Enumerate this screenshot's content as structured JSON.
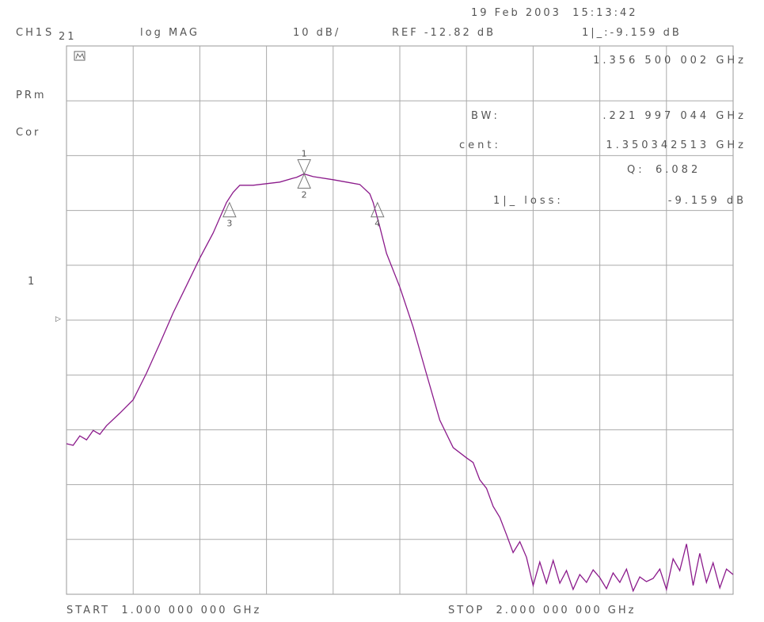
{
  "header": {
    "timestamp": "19 Feb 2003  15:13:42",
    "channel": "CH1",
    "param_s": "S",
    "param_21": "21",
    "format": "log MAG",
    "scale": "10 dB/",
    "ref": "REF -12.82 dB",
    "marker1_readout": "1|_:-9.159 dB"
  },
  "side_labels": {
    "prm": "PRm",
    "cor": "Cor",
    "ref_arrow": "1",
    "ref_tri": "▷"
  },
  "marker_box_icon": "marker-box-icon",
  "marker_readouts": {
    "freq": "1.356 500 002 GHz",
    "bw_label": "BW:",
    "bw_value": ".221 997 044 GHz",
    "cent_label": "cent:",
    "cent_value": "1.350342513 GHz",
    "q_label": "Q:",
    "q_value": "6.082",
    "loss_label": "1|_ loss:",
    "loss_value": "-9.159 dB"
  },
  "footer": {
    "start": "START  1.000 000 000 GHz",
    "stop": "STOP  2.000 000 000 GHz"
  },
  "chart_data": {
    "type": "line",
    "x_unit": "GHz",
    "xlim": [
      1.0,
      2.0
    ],
    "ylim": [
      -62.82,
      7.18
    ],
    "ref_level": -12.82,
    "scale_per_div": 10,
    "grid": true,
    "trace_color": "#8b1a8b",
    "series": [
      {
        "x": [
          1.0,
          1.01,
          1.02,
          1.03,
          1.04,
          1.05,
          1.06,
          1.08,
          1.1,
          1.12,
          1.14,
          1.16,
          1.18,
          1.2,
          1.22,
          1.24,
          1.25,
          1.26,
          1.28,
          1.3,
          1.32,
          1.34,
          1.345,
          1.356,
          1.37,
          1.4,
          1.42,
          1.44,
          1.455,
          1.46,
          1.47,
          1.48,
          1.5,
          1.52,
          1.54,
          1.56,
          1.58,
          1.6,
          1.61,
          1.62,
          1.63,
          1.64,
          1.65,
          1.66,
          1.67,
          1.68,
          1.69,
          1.7,
          1.71,
          1.72,
          1.73,
          1.74,
          1.75,
          1.76,
          1.77,
          1.78,
          1.79,
          1.8,
          1.81,
          1.82,
          1.83,
          1.84,
          1.85,
          1.86,
          1.87,
          1.88,
          1.89,
          1.9,
          1.91,
          1.92,
          1.93,
          1.94,
          1.95,
          1.96,
          1.97,
          1.98,
          1.99,
          2.0
        ],
        "y": [
          -43.6,
          -43.8,
          -42.6,
          -43.1,
          -41.9,
          -42.4,
          -41.3,
          -39.7,
          -38.0,
          -34.6,
          -30.8,
          -26.9,
          -23.4,
          -19.9,
          -16.7,
          -12.8,
          -11.5,
          -10.6,
          -10.6,
          -10.4,
          -10.2,
          -9.7,
          -9.6,
          -9.16,
          -9.5,
          -9.9,
          -10.2,
          -10.5,
          -11.7,
          -12.8,
          -15.9,
          -19.3,
          -23.6,
          -28.7,
          -34.7,
          -40.6,
          -44.1,
          -45.4,
          -46.0,
          -48.2,
          -49.3,
          -51.6,
          -53.0,
          -55.2,
          -57.5,
          -56.1,
          -58.1,
          -61.7,
          -58.7,
          -61.4,
          -58.5,
          -61.4,
          -59.8,
          -62.2,
          -60.3,
          -61.3,
          -59.7,
          -60.7,
          -62.1,
          -60.1,
          -61.3,
          -59.6,
          -62.4,
          -60.6,
          -61.2,
          -60.8,
          -59.6,
          -62.2,
          -58.3,
          -59.8,
          -56.4,
          -61.7,
          -57.6,
          -61.3,
          -58.8,
          -62.0,
          -59.6,
          -60.3
        ]
      }
    ],
    "markers": [
      {
        "label": "1",
        "x": 1.3565,
        "y": -9.16,
        "direction": "down"
      },
      {
        "label": "2",
        "x": 1.3565,
        "y": -9.16,
        "direction": "up"
      },
      {
        "label": "3",
        "x": 1.2445,
        "y": -12.82,
        "direction": "up"
      },
      {
        "label": "4",
        "x": 1.4665,
        "y": -12.82,
        "direction": "up"
      }
    ]
  }
}
